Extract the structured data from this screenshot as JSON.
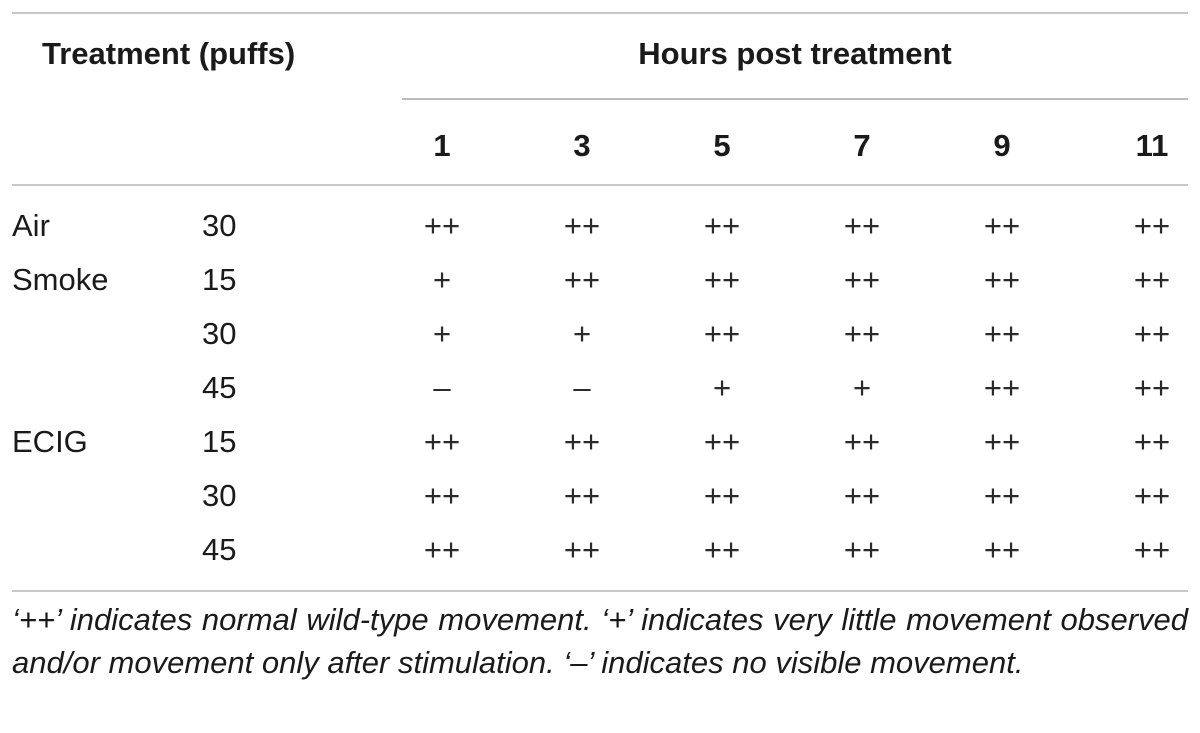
{
  "header": {
    "treatment_label": "Treatment (puffs)",
    "hours_label": "Hours post treatment",
    "hours": [
      "1",
      "3",
      "5",
      "7",
      "9",
      "11"
    ]
  },
  "rows": [
    {
      "treatment": "Air",
      "puffs": "30",
      "values": [
        "++",
        "++",
        "++",
        "++",
        "++",
        "++"
      ]
    },
    {
      "treatment": "Smoke",
      "puffs": "15",
      "values": [
        "+",
        "++",
        "++",
        "++",
        "++",
        "++"
      ]
    },
    {
      "treatment": "",
      "puffs": "30",
      "values": [
        "+",
        "+",
        "++",
        "++",
        "++",
        "++"
      ]
    },
    {
      "treatment": "",
      "puffs": "45",
      "values": [
        "–",
        "–",
        "+",
        "+",
        "++",
        "++"
      ]
    },
    {
      "treatment": "ECIG",
      "puffs": "15",
      "values": [
        "++",
        "++",
        "++",
        "++",
        "++",
        "++"
      ]
    },
    {
      "treatment": "",
      "puffs": "30",
      "values": [
        "++",
        "++",
        "++",
        "++",
        "++",
        "++"
      ]
    },
    {
      "treatment": "",
      "puffs": "45",
      "values": [
        "++",
        "++",
        "++",
        "++",
        "++",
        "++"
      ]
    }
  ],
  "footnote": "‘++’ indicates normal wild-type movement. ‘+’ indicates very little movement observed and/or movement only after stimulation. ‘–’ indicates no visible movement."
}
